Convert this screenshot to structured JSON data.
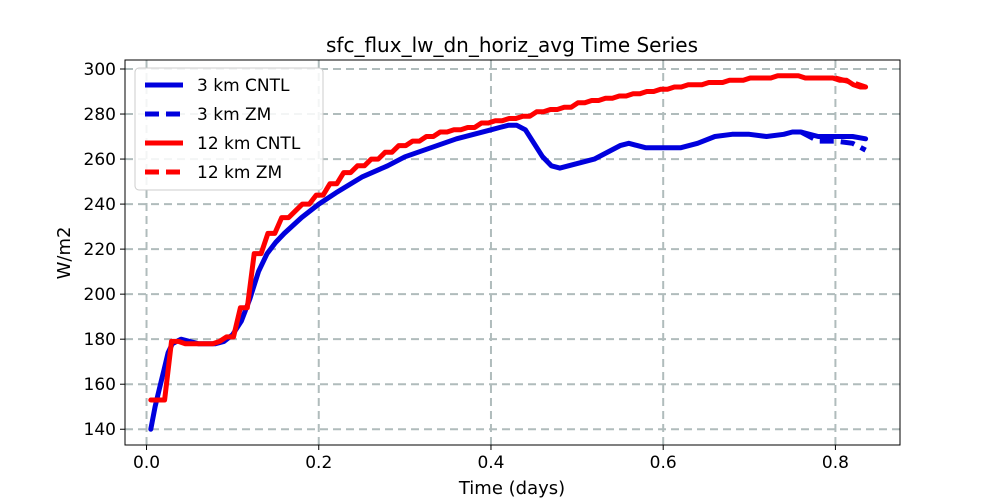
{
  "chart_data": {
    "type": "line",
    "title": "sfc_flux_lw_dn_horiz_avg Time Series",
    "xlabel": "Time (days)",
    "ylabel": "W/m2",
    "xlim": [
      -0.025,
      0.875
    ],
    "ylim": [
      133,
      304
    ],
    "xticks": [
      0.0,
      0.2,
      0.4,
      0.6,
      0.8
    ],
    "xtick_labels": [
      "0.0",
      "0.2",
      "0.4",
      "0.6",
      "0.8"
    ],
    "yticks": [
      140,
      160,
      180,
      200,
      220,
      240,
      260,
      280,
      300
    ],
    "ytick_labels": [
      "140",
      "160",
      "180",
      "200",
      "220",
      "240",
      "260",
      "280",
      "300"
    ],
    "grid": true,
    "legend_position": "top-left",
    "series": [
      {
        "name": "3 km CNTL",
        "color": "#0000dd",
        "style": "solid",
        "x": [
          0.005,
          0.01,
          0.015,
          0.02,
          0.025,
          0.03,
          0.04,
          0.05,
          0.06,
          0.07,
          0.08,
          0.09,
          0.1,
          0.11,
          0.12,
          0.13,
          0.14,
          0.15,
          0.16,
          0.18,
          0.2,
          0.22,
          0.25,
          0.28,
          0.3,
          0.33,
          0.36,
          0.38,
          0.4,
          0.41,
          0.42,
          0.43,
          0.44,
          0.45,
          0.46,
          0.47,
          0.48,
          0.5,
          0.52,
          0.54,
          0.55,
          0.56,
          0.57,
          0.58,
          0.6,
          0.62,
          0.64,
          0.66,
          0.68,
          0.7,
          0.72,
          0.74,
          0.75,
          0.76,
          0.77,
          0.78,
          0.8,
          0.82,
          0.835
        ],
        "y": [
          140,
          150,
          158,
          166,
          174,
          178,
          180,
          179,
          178,
          178,
          178,
          179,
          182,
          188,
          198,
          210,
          218,
          223,
          227,
          234,
          240,
          245,
          252,
          257,
          261,
          265,
          269,
          271,
          273,
          274,
          275,
          275,
          273,
          267,
          261,
          257,
          256,
          258,
          260,
          264,
          266,
          267,
          266,
          265,
          265,
          265,
          267,
          270,
          271,
          271,
          270,
          271,
          272,
          272,
          271,
          270,
          270,
          270,
          269
        ]
      },
      {
        "name": "3 km ZM",
        "color": "#0000dd",
        "style": "dashed",
        "x": [
          0.76,
          0.77,
          0.78,
          0.8,
          0.82,
          0.835
        ],
        "y": [
          272,
          270,
          268,
          268,
          267,
          264
        ]
      },
      {
        "name": "12 km CNTL",
        "color": "#ff0000",
        "style": "solid",
        "x": [
          0.005,
          0.013,
          0.021,
          0.029,
          0.037,
          0.045,
          0.053,
          0.061,
          0.069,
          0.077,
          0.085,
          0.093,
          0.101,
          0.109,
          0.117,
          0.125,
          0.133,
          0.141,
          0.149,
          0.157,
          0.165,
          0.173,
          0.181,
          0.189,
          0.197,
          0.205,
          0.213,
          0.221,
          0.229,
          0.237,
          0.245,
          0.253,
          0.261,
          0.269,
          0.277,
          0.285,
          0.293,
          0.301,
          0.309,
          0.317,
          0.325,
          0.333,
          0.341,
          0.349,
          0.357,
          0.365,
          0.373,
          0.381,
          0.389,
          0.397,
          0.405,
          0.413,
          0.421,
          0.429,
          0.437,
          0.445,
          0.453,
          0.461,
          0.469,
          0.477,
          0.485,
          0.493,
          0.501,
          0.509,
          0.517,
          0.525,
          0.533,
          0.541,
          0.549,
          0.557,
          0.565,
          0.573,
          0.581,
          0.589,
          0.597,
          0.605,
          0.613,
          0.621,
          0.629,
          0.637,
          0.645,
          0.653,
          0.661,
          0.669,
          0.677,
          0.685,
          0.693,
          0.701,
          0.709,
          0.717,
          0.725,
          0.733,
          0.741,
          0.749,
          0.757,
          0.765,
          0.773,
          0.781,
          0.789,
          0.797,
          0.805,
          0.813,
          0.821,
          0.829,
          0.835
        ],
        "y": [
          153,
          153,
          153,
          179,
          179,
          178,
          178,
          178,
          178,
          178,
          179,
          181,
          181,
          194,
          194,
          218,
          218,
          227,
          227,
          234,
          234,
          237,
          240,
          240,
          244,
          244,
          249,
          249,
          254,
          254,
          257,
          257,
          260,
          260,
          263,
          263,
          266,
          266,
          268,
          268,
          270,
          270,
          272,
          272,
          273,
          273,
          274,
          274,
          276,
          276,
          277,
          277,
          278,
          278,
          279,
          279,
          281,
          281,
          282,
          282,
          283,
          283,
          285,
          285,
          286,
          286,
          287,
          287,
          288,
          288,
          289,
          289,
          290,
          290,
          291,
          291,
          292,
          292,
          293,
          293,
          293,
          294,
          294,
          294,
          295,
          295,
          295,
          296,
          296,
          296,
          296,
          297,
          297,
          297,
          297,
          296,
          296,
          296,
          296,
          296,
          295,
          295,
          293,
          292,
          292
        ]
      },
      {
        "name": "12 km ZM",
        "color": "#ff0000",
        "style": "dashed",
        "x": [
          0.8,
          0.81,
          0.82,
          0.835
        ],
        "y": [
          296,
          295,
          294,
          292
        ]
      }
    ]
  }
}
